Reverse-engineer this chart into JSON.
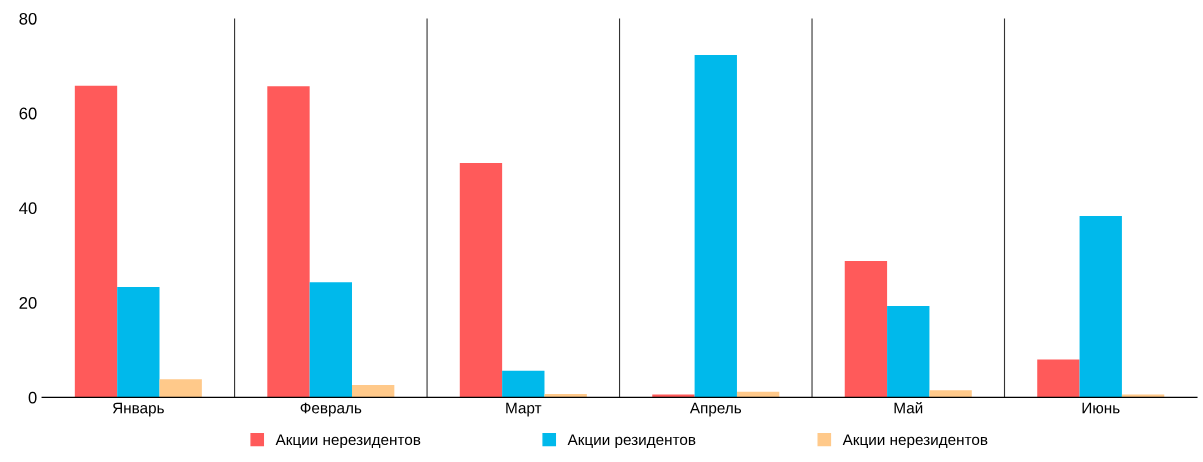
{
  "chart_data": {
    "type": "bar",
    "categories": [
      "Январь",
      "Февраль",
      "Март",
      "Апрель",
      "Май",
      "Июнь"
    ],
    "series": [
      {
        "name": "Акции нерезидентов",
        "color": "#ff5a5a",
        "values": [
          65.8,
          65.7,
          49.5,
          0.6,
          28.8,
          8.0
        ]
      },
      {
        "name": "Акции резидентов",
        "color": "#00b9eb",
        "values": [
          23.3,
          24.3,
          5.6,
          72.3,
          19.3,
          38.3
        ]
      },
      {
        "name": "Акции нерезидентов",
        "color": "#ffc98a",
        "values": [
          3.8,
          2.6,
          0.7,
          1.2,
          1.5,
          0.6
        ]
      }
    ],
    "ylim": [
      0,
      80
    ],
    "yticks": [
      0,
      20,
      40,
      60,
      80
    ],
    "grid": "x",
    "legend": "bottom"
  }
}
